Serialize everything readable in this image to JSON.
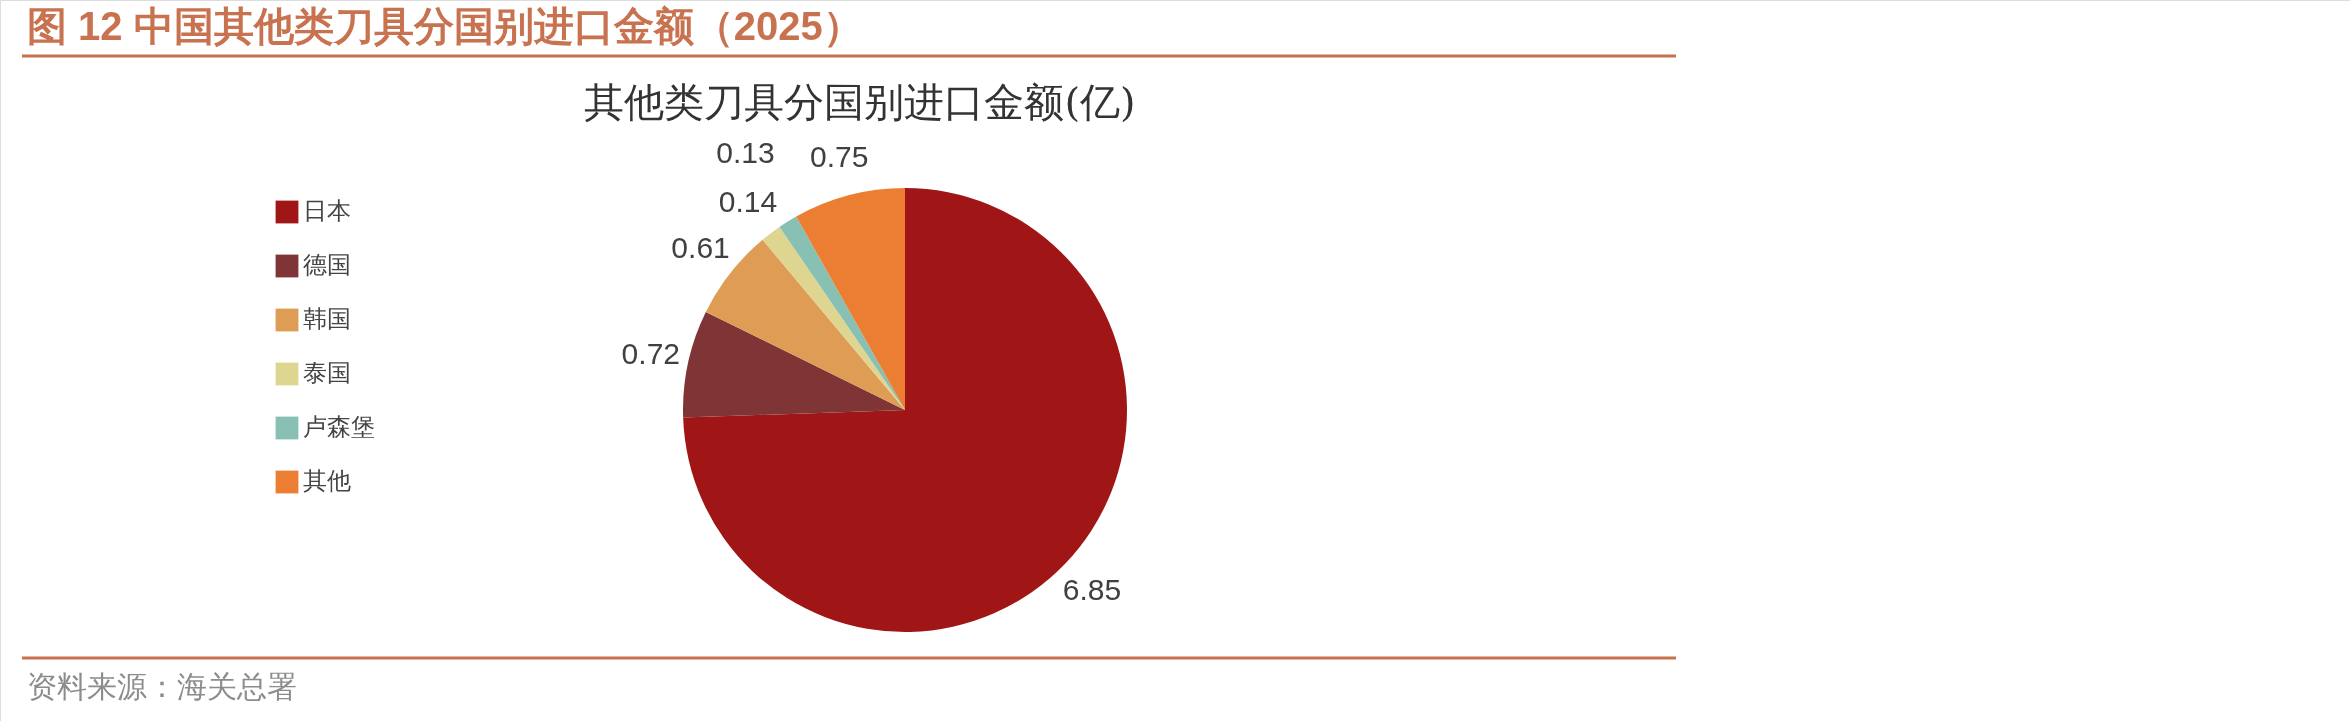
{
  "chart_data": {
    "type": "pie",
    "title": "图 12 中国其他类刀具分国别进口金额（2025）",
    "subtitle": "其他类刀具分国别进口金额(亿)",
    "categories": [
      "日本",
      "德国",
      "韩国",
      "泰国",
      "卢森堡",
      "其他"
    ],
    "values": [
      6.85,
      0.72,
      0.61,
      0.14,
      0.13,
      0.75
    ],
    "colors": [
      "#a01616",
      "#7f3535",
      "#df9c55",
      "#ded690",
      "#88c0b3",
      "#ec7e33"
    ],
    "data_labels": true,
    "legend": "left",
    "annotations": [
      "资料来源：海关总署"
    ]
  }
}
